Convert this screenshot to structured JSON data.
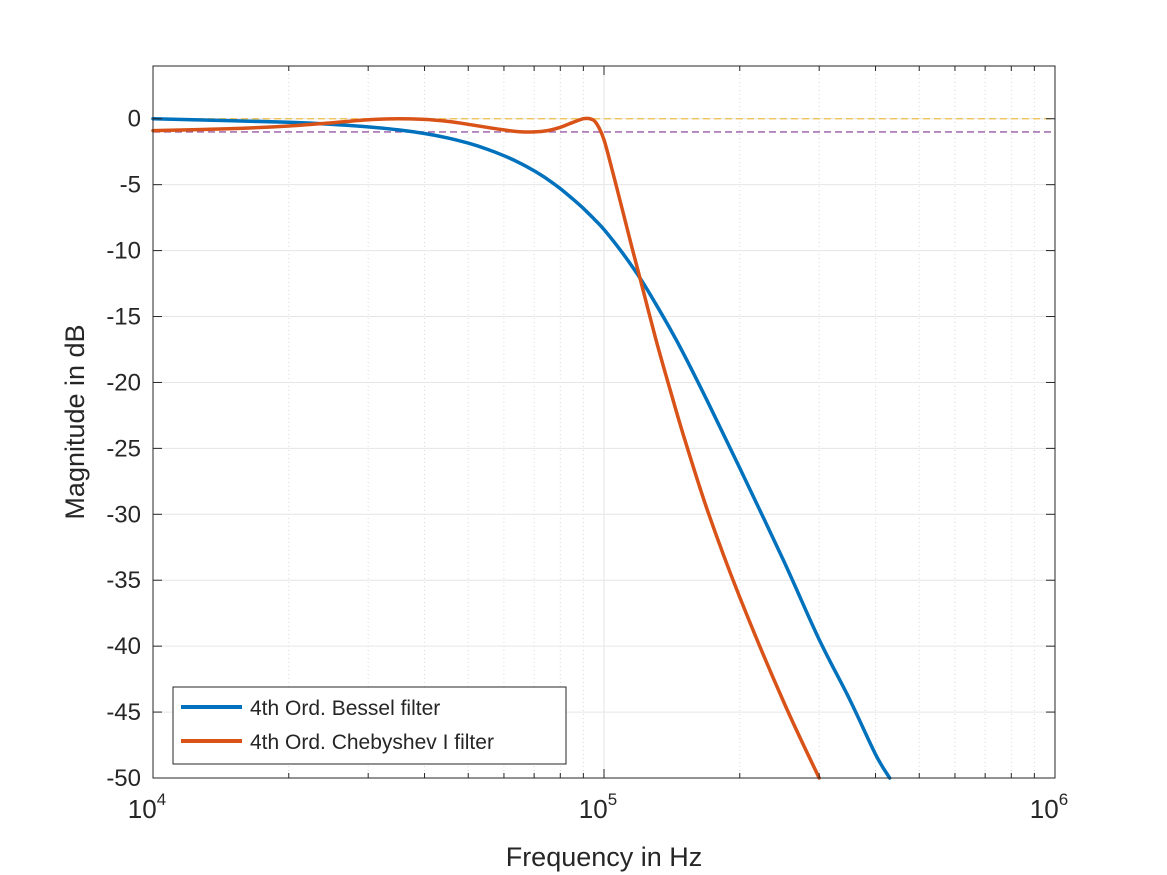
{
  "chart_data": {
    "type": "line",
    "title": "",
    "xlabel": "Frequency in Hz",
    "ylabel": "Magnitude in dB",
    "xscale": "log",
    "xlim": [
      10000,
      1000000
    ],
    "ylim": [
      -50,
      4
    ],
    "grid": true,
    "minor_grid_x": true,
    "legend_position": "bottom-left",
    "x_ticks": [
      {
        "base": "10",
        "exp": "4"
      },
      {
        "base": "10",
        "exp": "5"
      },
      {
        "base": "10",
        "exp": "6"
      }
    ],
    "y_ticks": [
      0,
      -5,
      -10,
      -15,
      -20,
      -25,
      -30,
      -35,
      -40,
      -45,
      -50
    ],
    "y_tick_labels": [
      "0",
      "-5",
      "-10",
      "-15",
      "-20",
      "-25",
      "-30",
      "-35",
      "-40",
      "-45",
      "-50"
    ],
    "series": [
      {
        "name": "4th Ord. Bessel filter",
        "color": "#0072BD",
        "x": [
          10000,
          15000,
          20000,
          25000,
          30000,
          35000,
          40000,
          45000,
          50000,
          55000,
          60000,
          65000,
          70000,
          75000,
          80000,
          85000,
          90000,
          95000,
          100000,
          110000,
          120000,
          130000,
          140000,
          150000,
          170000,
          200000,
          250000,
          300000,
          350000,
          400000,
          430000
        ],
        "values": [
          0.0,
          -0.15,
          -0.27,
          -0.43,
          -0.62,
          -0.85,
          -1.12,
          -1.45,
          -1.85,
          -2.3,
          -2.8,
          -3.35,
          -3.95,
          -4.6,
          -5.3,
          -6.05,
          -6.8,
          -7.6,
          -8.4,
          -10.2,
          -12.05,
          -14.0,
          -15.9,
          -17.8,
          -21.5,
          -26.5,
          -33.5,
          -39.5,
          -44.0,
          -48.2,
          -50.0
        ]
      },
      {
        "name": "4th Ord. Chebyshev I filter",
        "color": "#D95319",
        "x": [
          10000,
          15000,
          20000,
          25000,
          30000,
          35000,
          40000,
          45000,
          50000,
          55000,
          60000,
          65000,
          70000,
          75000,
          80000,
          85000,
          90000,
          93000,
          96000,
          100000,
          105000,
          110000,
          115000,
          120000,
          130000,
          140000,
          150000,
          170000,
          200000,
          250000,
          300000
        ],
        "values": [
          -0.9,
          -0.75,
          -0.55,
          -0.3,
          -0.08,
          0.0,
          -0.05,
          -0.2,
          -0.42,
          -0.65,
          -0.85,
          -0.98,
          -1.0,
          -0.9,
          -0.65,
          -0.3,
          0.0,
          0.0,
          -0.3,
          -1.6,
          -4.3,
          -7.0,
          -9.6,
          -12.0,
          -16.6,
          -20.5,
          -24.0,
          -29.8,
          -36.3,
          -44.2,
          -50.0
        ]
      }
    ],
    "reference_lines": [
      {
        "y": 0,
        "color": "#EDB120",
        "style": "dashed"
      },
      {
        "y": -1,
        "color": "#7E2F8E",
        "style": "dashed"
      }
    ]
  }
}
